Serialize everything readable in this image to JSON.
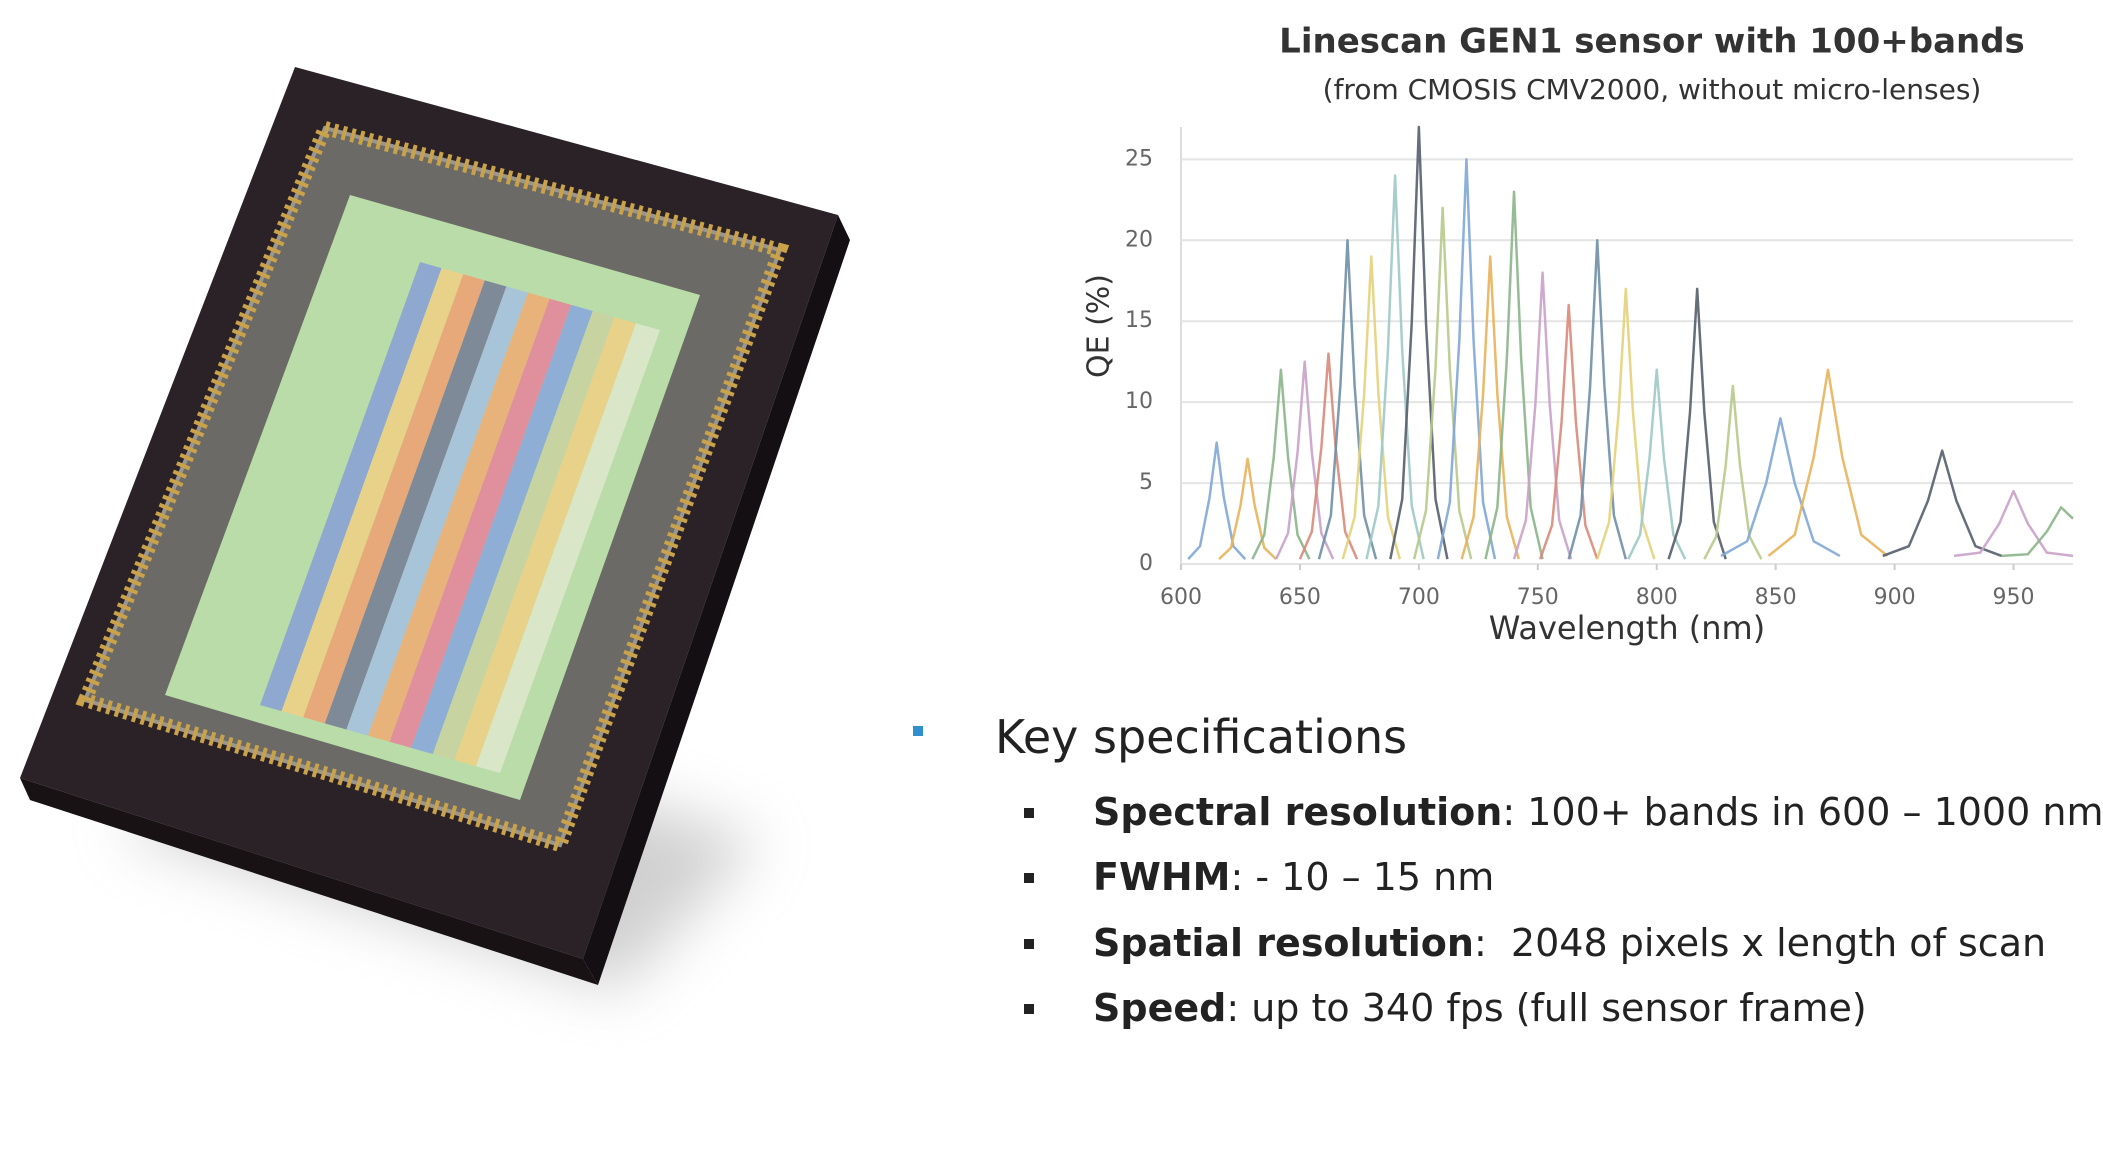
{
  "chart_data": {
    "type": "line",
    "title": "Linescan GEN1 sensor with 100+bands",
    "subtitle": "(from CMOSIS CMV2000, without micro-lenses)",
    "x_label": "Wavelength (nm)",
    "y_label": "QE (%)",
    "xlim": [
      600,
      975
    ],
    "xticks": [
      600,
      650,
      700,
      750,
      800,
      850,
      900,
      950
    ],
    "ylim": [
      0,
      27
    ],
    "yticks": [
      0,
      5,
      10,
      15,
      20,
      25
    ],
    "grid": true,
    "series": [
      {
        "color": "#7fa7d6",
        "x": [
          603,
          608,
          612,
          615,
          618,
          622,
          627
        ],
        "values": [
          0.3,
          1.1,
          4.1,
          7.5,
          4.1,
          1.1,
          0.3
        ]
      },
      {
        "color": "#e8b35a",
        "x": [
          616,
          621,
          625,
          628,
          631,
          635,
          640
        ],
        "values": [
          0.3,
          1,
          3.6,
          6.5,
          3.6,
          1,
          0.3
        ]
      },
      {
        "color": "#8bb58a",
        "x": [
          630,
          635,
          639,
          642,
          645,
          649,
          654
        ],
        "values": [
          0.3,
          1.8,
          6.6,
          12,
          6.6,
          1.8,
          0.3
        ]
      },
      {
        "color": "#c9a2c9",
        "x": [
          640,
          645,
          649,
          652,
          655,
          659,
          664
        ],
        "values": [
          0.3,
          1.9,
          6.9,
          12.5,
          6.9,
          1.9,
          0.3
        ]
      },
      {
        "color": "#d98a7a",
        "x": [
          650,
          655,
          659,
          662,
          665,
          669,
          674
        ],
        "values": [
          0.3,
          2,
          7.2,
          13,
          7.2,
          2,
          0.3
        ]
      },
      {
        "color": "#6f8fa8",
        "x": [
          658,
          663,
          667,
          670,
          673,
          677,
          682
        ],
        "values": [
          0.3,
          3,
          11,
          20,
          11,
          3,
          0.3
        ]
      },
      {
        "color": "#e4d27a",
        "x": [
          668,
          673,
          677,
          680,
          683,
          687,
          692
        ],
        "values": [
          0.3,
          2.9,
          10.5,
          19,
          10.5,
          2.9,
          0.3
        ]
      },
      {
        "color": "#9ec9c5",
        "x": [
          678,
          683,
          687,
          690,
          693,
          697,
          702
        ],
        "values": [
          0.3,
          3.6,
          13.2,
          24,
          13.2,
          3.6,
          0.3
        ]
      },
      {
        "color": "#555e6b",
        "x": [
          688,
          693,
          697,
          700,
          703,
          707,
          712
        ],
        "values": [
          0.3,
          4,
          14.9,
          27,
          14.9,
          4,
          0.3
        ]
      },
      {
        "color": "#b7c98a",
        "x": [
          698,
          703,
          707,
          710,
          713,
          717,
          722
        ],
        "values": [
          0.3,
          3.3,
          12.1,
          22,
          12.1,
          3.3,
          0.3
        ]
      },
      {
        "color": "#7fa7d6",
        "x": [
          708,
          713,
          717,
          720,
          723,
          727,
          732
        ],
        "values": [
          0.3,
          3.8,
          13.8,
          25,
          13.8,
          3.8,
          0.3
        ]
      },
      {
        "color": "#e8b35a",
        "x": [
          718,
          723,
          727,
          730,
          733,
          737,
          742
        ],
        "values": [
          0.3,
          2.9,
          10.5,
          19,
          10.5,
          2.9,
          0.3
        ]
      },
      {
        "color": "#8bb58a",
        "x": [
          728,
          733,
          737,
          740,
          743,
          747,
          752
        ],
        "values": [
          0.3,
          3.5,
          12.7,
          23,
          12.7,
          3.5,
          0.3
        ]
      },
      {
        "color": "#c9a2c9",
        "x": [
          740,
          745,
          749,
          752,
          755,
          759,
          764
        ],
        "values": [
          0.3,
          2.7,
          9.9,
          18,
          9.9,
          2.7,
          0.3
        ]
      },
      {
        "color": "#d98a7a",
        "x": [
          751,
          756,
          760,
          763,
          766,
          770,
          775
        ],
        "values": [
          0.3,
          2.4,
          8.8,
          16,
          8.8,
          2.4,
          0.3
        ]
      },
      {
        "color": "#6f8fa8",
        "x": [
          763,
          768,
          772,
          775,
          778,
          782,
          787
        ],
        "values": [
          0.3,
          3,
          11,
          20,
          11,
          3,
          0.3
        ]
      },
      {
        "color": "#e4d27a",
        "x": [
          775,
          780,
          784,
          787,
          790,
          794,
          799
        ],
        "values": [
          0.3,
          2.6,
          9.4,
          17,
          9.4,
          2.6,
          0.3
        ]
      },
      {
        "color": "#9ec9c5",
        "x": [
          788,
          793,
          797,
          800,
          803,
          807,
          812
        ],
        "values": [
          0.3,
          1.8,
          6.6,
          12,
          6.6,
          1.8,
          0.3
        ]
      },
      {
        "color": "#555e6b",
        "x": [
          805,
          810,
          814,
          817,
          820,
          824,
          829
        ],
        "values": [
          0.3,
          2.6,
          9.4,
          17,
          9.4,
          2.6,
          0.3
        ]
      },
      {
        "color": "#b7c98a",
        "x": [
          820,
          825,
          829,
          832,
          835,
          839,
          844
        ],
        "values": [
          0.3,
          1.7,
          6.1,
          11,
          6.1,
          1.7,
          0.3
        ]
      },
      {
        "color": "#7fa7d6",
        "x": [
          827,
          838,
          846,
          852,
          858,
          866,
          877
        ],
        "values": [
          0.5,
          1.4,
          5,
          9,
          5,
          1.4,
          0.5
        ]
      },
      {
        "color": "#e8b35a",
        "x": [
          847,
          858,
          866,
          872,
          878,
          886,
          897
        ],
        "values": [
          0.5,
          1.8,
          6.6,
          12,
          6.6,
          1.8,
          0.5
        ]
      },
      {
        "color": "#555e6b",
        "x": [
          895,
          906,
          914,
          920,
          926,
          934,
          945
        ],
        "values": [
          0.5,
          1.1,
          3.9,
          7,
          3.9,
          1.1,
          0.5
        ]
      },
      {
        "color": "#c9a2c9",
        "x": [
          925,
          936,
          944,
          950,
          956,
          964,
          975
        ],
        "values": [
          0.5,
          0.7,
          2.5,
          4.5,
          2.5,
          0.7,
          0.5
        ]
      },
      {
        "color": "#8bb58a",
        "x": [
          945,
          956,
          964,
          970,
          975
        ],
        "values": [
          0.5,
          0.6,
          2,
          3.5,
          2.8
        ]
      }
    ]
  },
  "specs": {
    "heading": "Key specifications",
    "items": [
      {
        "label": "Spectral resolution",
        "text": ": 100+ bands in 600 – 1000 nm"
      },
      {
        "label": "FWHM",
        "text": ": - 10 – 15 nm"
      },
      {
        "label": "Spatial resolution",
        "text": ":  2048 pixels x length of scan"
      },
      {
        "label": "Speed",
        "text": ": up to 340 fps (full sensor frame)"
      }
    ]
  }
}
